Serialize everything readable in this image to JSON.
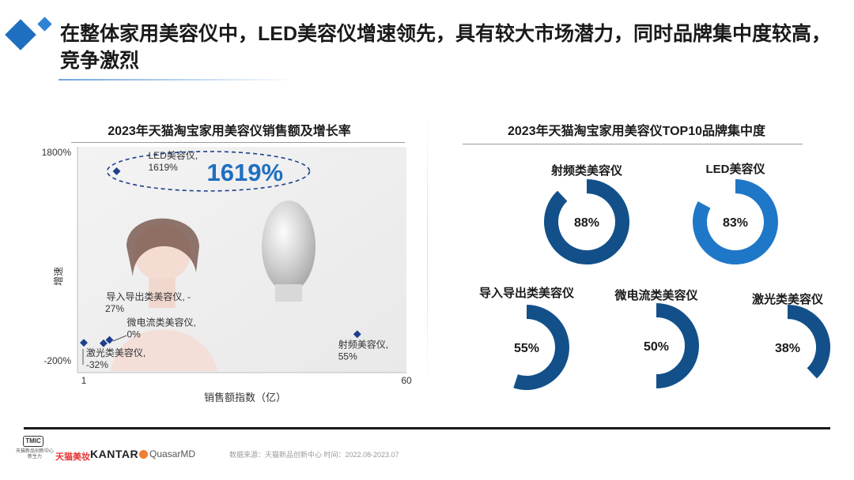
{
  "header": {
    "title": "在整体家用美容仪中，LED美容仪增速领先，具有较大市场潜力，同时品牌集中度较高，竞争激烈"
  },
  "left_panel": {
    "title": "2023年天猫淘宝家用美容仪销售额及增长率"
  },
  "right_panel": {
    "title": "2023年天猫淘宝家用美容仪TOP10品牌集中度"
  },
  "chart_data": [
    {
      "type": "scatter",
      "title": "2023年天猫淘宝家用美容仪销售额及增长率",
      "xlabel": "销售额指数（亿）",
      "ylabel": "增速",
      "xlim": [
        1,
        60
      ],
      "ylim": [
        -200,
        1800
      ],
      "x_ticks": [
        "1",
        "60"
      ],
      "y_ticks": [
        "1800%",
        "-200%"
      ],
      "grid": false,
      "points": [
        {
          "category": "LED美容仪",
          "x": 7,
          "y": 1619,
          "label": [
            "LED美容仪,",
            "1619%"
          ]
        },
        {
          "category": "导入导出类美容仪",
          "x": 1,
          "y": -27,
          "label": [
            "导入导出类美容仪, -",
            "27%"
          ]
        },
        {
          "category": "微电流类美容仪",
          "x": 5.7,
          "y": 0,
          "label": [
            "微电流类美容仪,",
            "0%"
          ]
        },
        {
          "category": "激光类美容仪",
          "x": 4.6,
          "y": -32,
          "label": [
            "激光类美容仪,",
            "-32%"
          ]
        },
        {
          "category": "射频美容仪",
          "x": 51,
          "y": 55,
          "label": [
            "射频美容仪,",
            "55%"
          ]
        }
      ],
      "annotations": [
        {
          "text": "1619%",
          "target": "LED美容仪",
          "style": "dashed-ellipse"
        }
      ]
    },
    {
      "type": "pie",
      "variant": "donut",
      "title": "2023年天猫淘宝家用美容仪TOP10品牌集中度",
      "slices": [
        {
          "name": "射频类美容仪",
          "value": 88,
          "label": "88%",
          "color": "#13508a"
        },
        {
          "name": "LED美容仪",
          "value": 83,
          "label": "83%",
          "color": "#1f77c8"
        },
        {
          "name": "导入导出类美容仪",
          "value": 55,
          "label": "55%",
          "color": "#13508a"
        },
        {
          "name": "微电流类美容仪",
          "value": 50,
          "label": "50%",
          "color": "#13508a"
        },
        {
          "name": "激光类美容仪",
          "value": 38,
          "label": "38%",
          "color": "#13508a"
        }
      ]
    }
  ],
  "colors": {
    "accent": "#1f6fc0",
    "marker": "#1d3f8c",
    "callout": "#1f6fc0",
    "donut_dark": "#13508a",
    "donut_bright": "#1f77c8"
  },
  "footer": {
    "logos": {
      "tmic": "TMIC",
      "tmic_sub": "天猫新品创新中心 新生力",
      "tmall": "天猫美妆",
      "kantar": "KANTAR",
      "quasar": "QuasarMD"
    },
    "source": "数据来源：天猫新品创新中心 时间：2022.08-2023.07"
  }
}
